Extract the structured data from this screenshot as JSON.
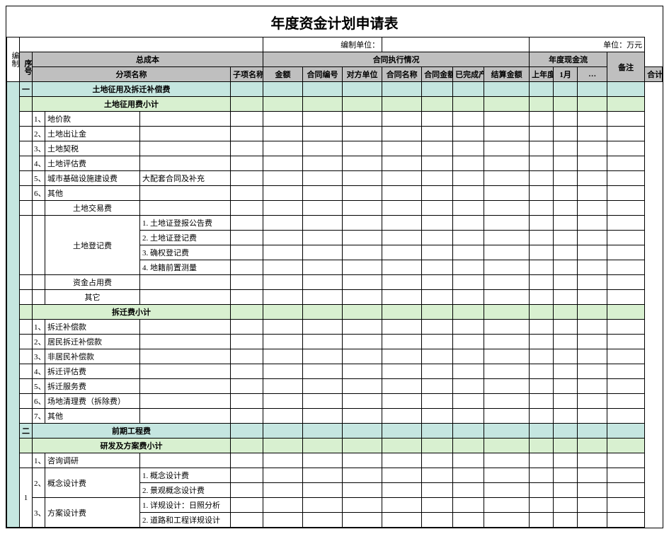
{
  "title": "年度资金计划申请表",
  "meta": {
    "label_left": "编制",
    "label_center": "编制单位：",
    "label_right": "单位：万元"
  },
  "left_side": {
    "serial": "序号"
  },
  "header": {
    "group_cost": "总成本",
    "group_contract": "合同执行情况",
    "group_cashflow": "年度现金流",
    "col_category": "分项名称",
    "col_subitem": "子项名称",
    "col_amount": "金额",
    "col_contract_no": "合同编号",
    "col_counterparty": "对方单位",
    "col_contract_name": "合同名称",
    "col_contract_amount": "合同金额",
    "col_completed_output": "已完成产值",
    "col_settle_amount": "结算金额",
    "col_prev_cum_paid": "上年度累计已付金额",
    "col_month1": "1月",
    "col_month_dots": "…",
    "col_total": "合计",
    "col_remark": "备注"
  },
  "sections": {
    "s1": {
      "idx": "一",
      "title": "土地征用及拆迁补偿费"
    },
    "s1a": {
      "title": "土地征用费小计"
    },
    "s1b": {
      "title": "拆迁费小计"
    },
    "s2": {
      "idx": "二",
      "title": "前期工程费"
    },
    "s2a": {
      "title": "研发及方案费小计"
    }
  },
  "rows": {
    "r1": {
      "n": "1、",
      "name": "地价款"
    },
    "r2": {
      "n": "2、",
      "name": "土地出让金"
    },
    "r3": {
      "n": "3、",
      "name": "土地契税"
    },
    "r4": {
      "n": "4、",
      "name": "土地评估费"
    },
    "r5": {
      "n": "5、",
      "name": "城市基础设施建设费",
      "sub": "大配套合同及补充"
    },
    "r6": {
      "n": "6、",
      "name": "其他"
    },
    "r6a": {
      "name": "土地交易费"
    },
    "r6b": {
      "name": "土地登记费"
    },
    "r6b1": {
      "sub": "1. 土地证登报公告费"
    },
    "r6b2": {
      "sub": "2. 土地证登记费"
    },
    "r6b3": {
      "sub": "3. 确权登记费"
    },
    "r6b4": {
      "sub": "4. 地籍前置测量"
    },
    "r6c": {
      "name": "资金占用费"
    },
    "r6d": {
      "name": "其它"
    },
    "d1": {
      "n": "1、",
      "name": "拆迁补偿款"
    },
    "d2": {
      "n": "2、",
      "name": "居民拆迁补偿款"
    },
    "d3": {
      "n": "3、",
      "name": "非居民补偿款"
    },
    "d4": {
      "n": "4、",
      "name": "拆迁评估费"
    },
    "d5": {
      "n": "5、",
      "name": "拆迁服务费"
    },
    "d6": {
      "n": "6、",
      "name": "场地清理费（拆除费）"
    },
    "d7": {
      "n": "7、",
      "name": "其他"
    },
    "p1": {
      "n": "1、",
      "name": "咨询调研"
    },
    "p2": {
      "n": "2、",
      "name": "概念设计费"
    },
    "p2a": {
      "sub": "1. 概念设计费"
    },
    "p2b": {
      "sub": "2. 景观概念设计费"
    },
    "p3": {
      "n": "3、",
      "name": "方案设计费"
    },
    "p3a": {
      "sub": "1. 详规设计：日照分析"
    },
    "p3b": {
      "sub": "2. 道路和工程详规设计"
    },
    "group1_idx": "1"
  }
}
